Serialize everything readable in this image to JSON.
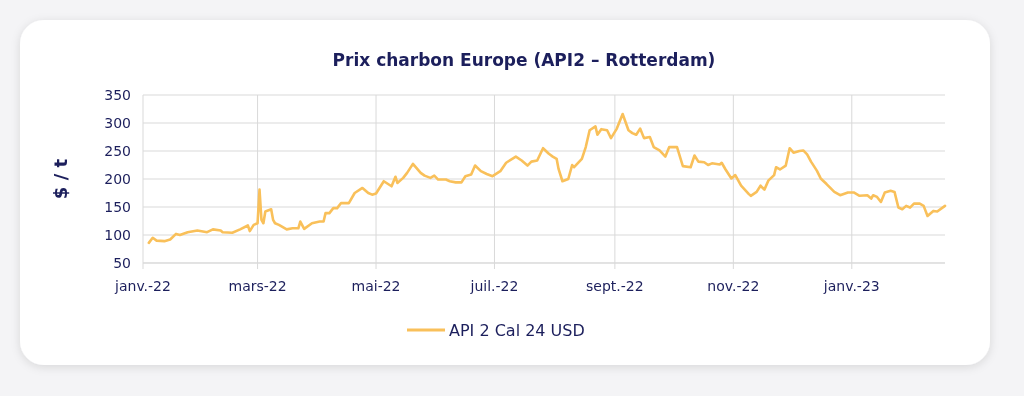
{
  "chart_data": {
    "type": "line",
    "title": "Prix charbon Europe (API2 – Rotterdam)",
    "ylabel": "$ / t",
    "x": [
      "2022-01-04",
      "2022-01-06",
      "2022-01-08",
      "2022-01-12",
      "2022-01-15",
      "2022-01-18",
      "2022-01-20",
      "2022-01-24",
      "2022-01-29",
      "2022-02-03",
      "2022-02-06",
      "2022-02-10",
      "2022-02-11",
      "2022-02-16",
      "2022-02-20",
      "2022-02-24",
      "2022-02-25",
      "2022-02-27",
      "2022-03-01",
      "2022-03-02",
      "2022-03-03",
      "2022-03-04",
      "2022-03-05",
      "2022-03-08",
      "2022-03-09",
      "2022-03-10",
      "2022-03-12",
      "2022-03-16",
      "2022-03-19",
      "2022-03-22",
      "2022-03-23",
      "2022-03-25",
      "2022-03-29",
      "2022-04-02",
      "2022-04-04",
      "2022-04-05",
      "2022-04-07",
      "2022-04-09",
      "2022-04-11",
      "2022-04-13",
      "2022-04-17",
      "2022-04-20",
      "2022-04-24",
      "2022-04-27",
      "2022-04-29",
      "2022-05-01",
      "2022-05-05",
      "2022-05-09",
      "2022-05-11",
      "2022-05-12",
      "2022-05-15",
      "2022-05-17",
      "2022-05-20",
      "2022-05-24",
      "2022-05-26",
      "2022-05-29",
      "2022-05-31",
      "2022-06-02",
      "2022-06-06",
      "2022-06-08",
      "2022-06-11",
      "2022-06-14",
      "2022-06-16",
      "2022-06-19",
      "2022-06-21",
      "2022-06-24",
      "2022-06-27",
      "2022-06-30",
      "2022-07-04",
      "2022-07-07",
      "2022-07-12",
      "2022-07-15",
      "2022-07-18",
      "2022-07-20",
      "2022-07-23",
      "2022-07-26",
      "2022-07-29",
      "2022-07-31",
      "2022-08-02",
      "2022-08-03",
      "2022-08-05",
      "2022-08-08",
      "2022-08-10",
      "2022-08-11",
      "2022-08-15",
      "2022-08-17",
      "2022-08-19",
      "2022-08-22",
      "2022-08-23",
      "2022-08-25",
      "2022-08-28",
      "2022-08-30",
      "2022-09-02",
      "2022-09-05",
      "2022-09-08",
      "2022-09-10",
      "2022-09-12",
      "2022-09-14",
      "2022-09-16",
      "2022-09-19",
      "2022-09-21",
      "2022-09-24",
      "2022-09-27",
      "2022-09-29",
      "2022-10-03",
      "2022-10-06",
      "2022-10-10",
      "2022-10-12",
      "2022-10-14",
      "2022-10-17",
      "2022-10-19",
      "2022-10-21",
      "2022-10-25",
      "2022-10-26",
      "2022-10-28",
      "2022-10-31",
      "2022-11-02",
      "2022-11-05",
      "2022-11-09",
      "2022-11-10",
      "2022-11-13",
      "2022-11-15",
      "2022-11-17",
      "2022-11-19",
      "2022-11-22",
      "2022-11-23",
      "2022-11-25",
      "2022-11-28",
      "2022-11-30",
      "2022-12-02",
      "2022-12-05",
      "2022-12-07",
      "2022-12-09",
      "2022-12-11",
      "2022-12-14",
      "2022-12-16",
      "2022-12-19",
      "2022-12-23",
      "2022-12-26",
      "2022-12-30",
      "2023-01-02",
      "2023-01-05",
      "2023-01-09",
      "2023-01-11",
      "2023-01-12",
      "2023-01-14",
      "2023-01-16",
      "2023-01-18",
      "2023-01-21",
      "2023-01-23",
      "2023-01-25",
      "2023-01-27",
      "2023-01-29",
      "2023-01-31",
      "2023-02-02",
      "2023-02-05",
      "2023-02-07",
      "2023-02-09",
      "2023-02-12",
      "2023-02-14",
      "2023-02-18"
    ],
    "series": [
      {
        "name": "API 2 Cal 24 USD",
        "color": "#f9c05a",
        "values": [
          86,
          95,
          90,
          89,
          92,
          102,
          100,
          105,
          108,
          105,
          110,
          108,
          105,
          104,
          110,
          117,
          107,
          118,
          121,
          181,
          127,
          121,
          142,
          146,
          127,
          121,
          118,
          110,
          112,
          112,
          124,
          111,
          121,
          124,
          124,
          139,
          139,
          148,
          148,
          157,
          157,
          175,
          184,
          175,
          172,
          174,
          196,
          187,
          204,
          193,
          202,
          211,
          227,
          211,
          206,
          202,
          206,
          199,
          199,
          196,
          194,
          194,
          205,
          208,
          224,
          214,
          209,
          205,
          214,
          229,
          240,
          233,
          224,
          231,
          233,
          255,
          245,
          240,
          236,
          218,
          196,
          200,
          225,
          221,
          236,
          257,
          287,
          294,
          279,
          289,
          287,
          273,
          290,
          316,
          287,
          282,
          279,
          290,
          273,
          275,
          257,
          251,
          240,
          257,
          257,
          223,
          221,
          242,
          231,
          230,
          225,
          228,
          226,
          229,
          217,
          201,
          207,
          188,
          173,
          170,
          177,
          188,
          181,
          197,
          207,
          221,
          217,
          224,
          255,
          247,
          250,
          251,
          244,
          231,
          215,
          201,
          191,
          177,
          171,
          176,
          176,
          170,
          171,
          165,
          171,
          168,
          159,
          176,
          179,
          177,
          149,
          146,
          152,
          149,
          156,
          156,
          152,
          134,
          143,
          142,
          152
        ]
      }
    ],
    "xlim": [
      "2022-01-01",
      "2023-02-18"
    ],
    "xticks": [
      {
        "value": "2022-01-01",
        "label": "janv.-22"
      },
      {
        "value": "2022-03-01",
        "label": "mars-22"
      },
      {
        "value": "2022-05-01",
        "label": "mai-22"
      },
      {
        "value": "2022-07-01",
        "label": "juil.-22"
      },
      {
        "value": "2022-09-01",
        "label": "sept.-22"
      },
      {
        "value": "2022-11-01",
        "label": "nov.-22"
      },
      {
        "value": "2023-01-01",
        "label": "janv.-23"
      }
    ],
    "ylim": [
      50,
      350
    ],
    "yticks": [
      50,
      100,
      150,
      200,
      250,
      300,
      350
    ],
    "grid": true,
    "legend": "bottom",
    "marker": "none",
    "line_style": "solid"
  }
}
